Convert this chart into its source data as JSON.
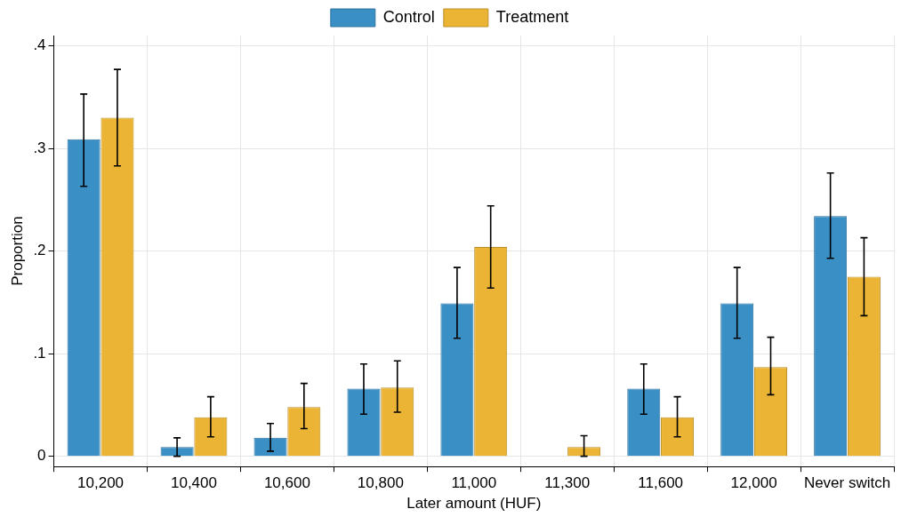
{
  "chart_data": {
    "type": "bar",
    "xlabel": "Later amount (HUF)",
    "ylabel": "Proportion",
    "categories": [
      "10,200",
      "10,400",
      "10,600",
      "10,800",
      "11,000",
      "11,300",
      "11,600",
      "12,000",
      "Never switch"
    ],
    "series": [
      {
        "name": "Control",
        "color": "#3a8fc5",
        "values": [
          0.309,
          0.009,
          0.018,
          0.066,
          0.149,
          0,
          0.066,
          0.149,
          0.234
        ],
        "errors": [
          [
            0.263,
            0.353
          ],
          [
            0.0,
            0.018
          ],
          [
            0.005,
            0.032
          ],
          [
            0.041,
            0.09
          ],
          [
            0.115,
            0.184
          ],
          null,
          [
            0.041,
            0.09
          ],
          [
            0.115,
            0.184
          ],
          [
            0.193,
            0.276
          ]
        ]
      },
      {
        "name": "Treatment",
        "color": "#ebb434",
        "values": [
          0.33,
          0.038,
          0.048,
          0.067,
          0.204,
          0.009,
          0.038,
          0.087,
          0.175
        ],
        "errors": [
          [
            0.283,
            0.377
          ],
          [
            0.019,
            0.058
          ],
          [
            0.027,
            0.071
          ],
          [
            0.043,
            0.093
          ],
          [
            0.164,
            0.244
          ],
          [
            0.0,
            0.02
          ],
          [
            0.019,
            0.058
          ],
          [
            0.06,
            0.116
          ],
          [
            0.137,
            0.213
          ]
        ]
      }
    ],
    "ylim": [
      -0.01,
      0.41
    ],
    "yticks": [
      {
        "value": 0,
        "label": "0"
      },
      {
        "value": 0.1,
        "label": ".1"
      },
      {
        "value": 0.2,
        "label": ".2"
      },
      {
        "value": 0.3,
        "label": ".3"
      },
      {
        "value": 0.4,
        "label": ".4"
      }
    ],
    "grid": true,
    "legend": "top"
  }
}
